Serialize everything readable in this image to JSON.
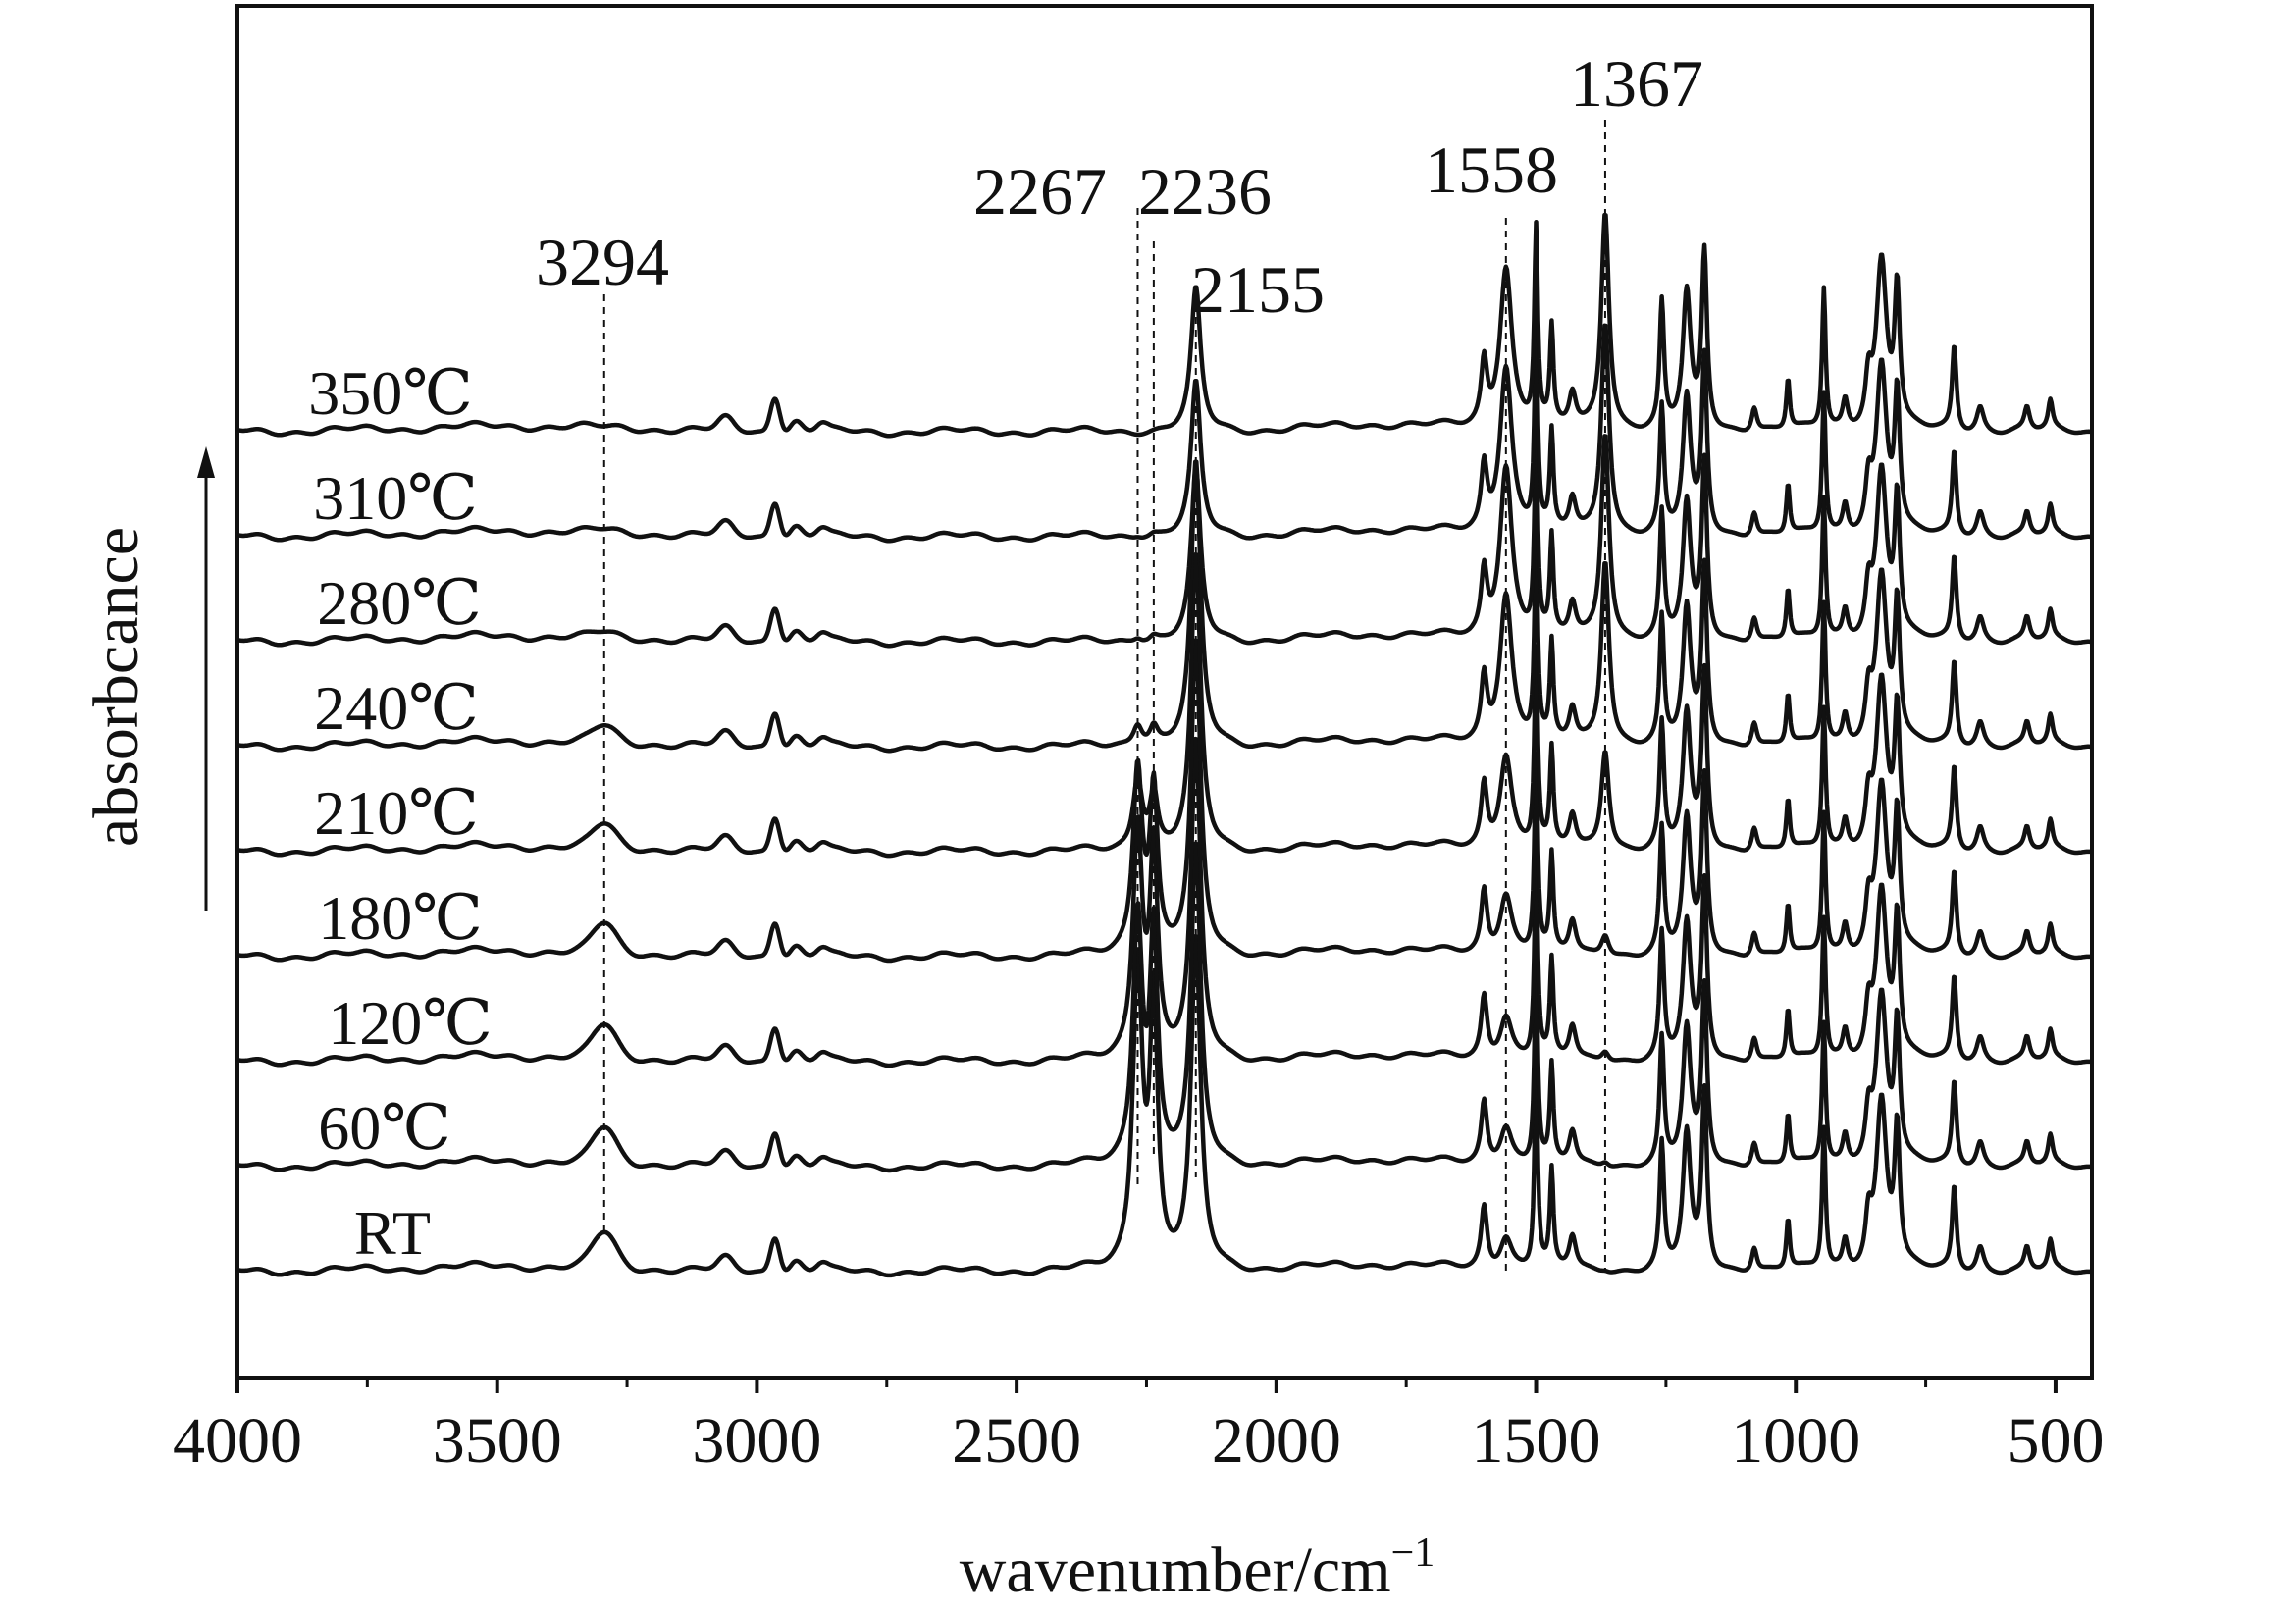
{
  "chart_data": {
    "type": "line",
    "title": "",
    "xlabel_main": "wavenumber/cm",
    "xlabel_sup": "−1",
    "ylabel": "absorbcance",
    "x_reversed": true,
    "xlim": [
      4000,
      430
    ],
    "x_ticks": [
      4000,
      3500,
      3000,
      2500,
      2000,
      1500,
      1000,
      500
    ],
    "y_ticks": [],
    "grid": false,
    "legend": "none",
    "line_color": "#111111",
    "peak_annotations": [
      {
        "label": "3294",
        "x": 3294
      },
      {
        "label": "2267",
        "x": 2267
      },
      {
        "label": "2236",
        "x": 2236
      },
      {
        "label": "2155",
        "x": 2155
      },
      {
        "label": "1558",
        "x": 1558
      },
      {
        "label": "1367",
        "x": 1367
      }
    ],
    "series": [
      {
        "name": "RT",
        "offset": 0,
        "peak_heights": {
          "3294": 0.3,
          "2267": 2.7,
          "2236": 2.3,
          "2155": 2.9,
          "1558": 0.3,
          "1367": 0.02
        }
      },
      {
        "name": "60℃",
        "offset": 1,
        "peak_heights": {
          "3294": 0.3,
          "2267": 2.2,
          "2236": 2.0,
          "2155": 2.8,
          "1558": 0.35,
          "1367": 0.05
        }
      },
      {
        "name": "120℃",
        "offset": 2,
        "peak_heights": {
          "3294": 0.28,
          "2267": 2.05,
          "2236": 1.8,
          "2155": 2.8,
          "1558": 0.4,
          "1367": 0.1
        }
      },
      {
        "name": "180℃",
        "offset": 3,
        "peak_heights": {
          "3294": 0.25,
          "2267": 1.65,
          "2236": 1.4,
          "2155": 2.75,
          "1558": 0.55,
          "1367": 0.2
        }
      },
      {
        "name": "210℃",
        "offset": 4,
        "peak_heights": {
          "3294": 0.2,
          "2267": 0.65,
          "2236": 0.48,
          "2155": 2.6,
          "1558": 0.85,
          "1367": 0.9
        }
      },
      {
        "name": "240℃",
        "offset": 5,
        "peak_heights": {
          "3294": 0.14,
          "2267": 0.2,
          "2236": 0.15,
          "2155": 2.5,
          "1558": 1.35,
          "1367": 1.65
        }
      },
      {
        "name": "280℃",
        "offset": 6,
        "peak_heights": {
          "3294": 0.04,
          "2267": 0.05,
          "2236": 0.04,
          "2155": 1.5,
          "1558": 1.55,
          "1367": 1.85
        }
      },
      {
        "name": "310℃",
        "offset": 7,
        "peak_heights": {
          "3294": 0.02,
          "2267": 0.02,
          "2236": 0.02,
          "2155": 1.35,
          "1558": 1.5,
          "1367": 1.9
        }
      },
      {
        "name": "350℃",
        "offset": 8,
        "peak_heights": {
          "3294": 0.0,
          "2267": 0.0,
          "2236": 0.0,
          "2155": 1.25,
          "1558": 1.45,
          "1367": 1.95
        }
      }
    ]
  }
}
